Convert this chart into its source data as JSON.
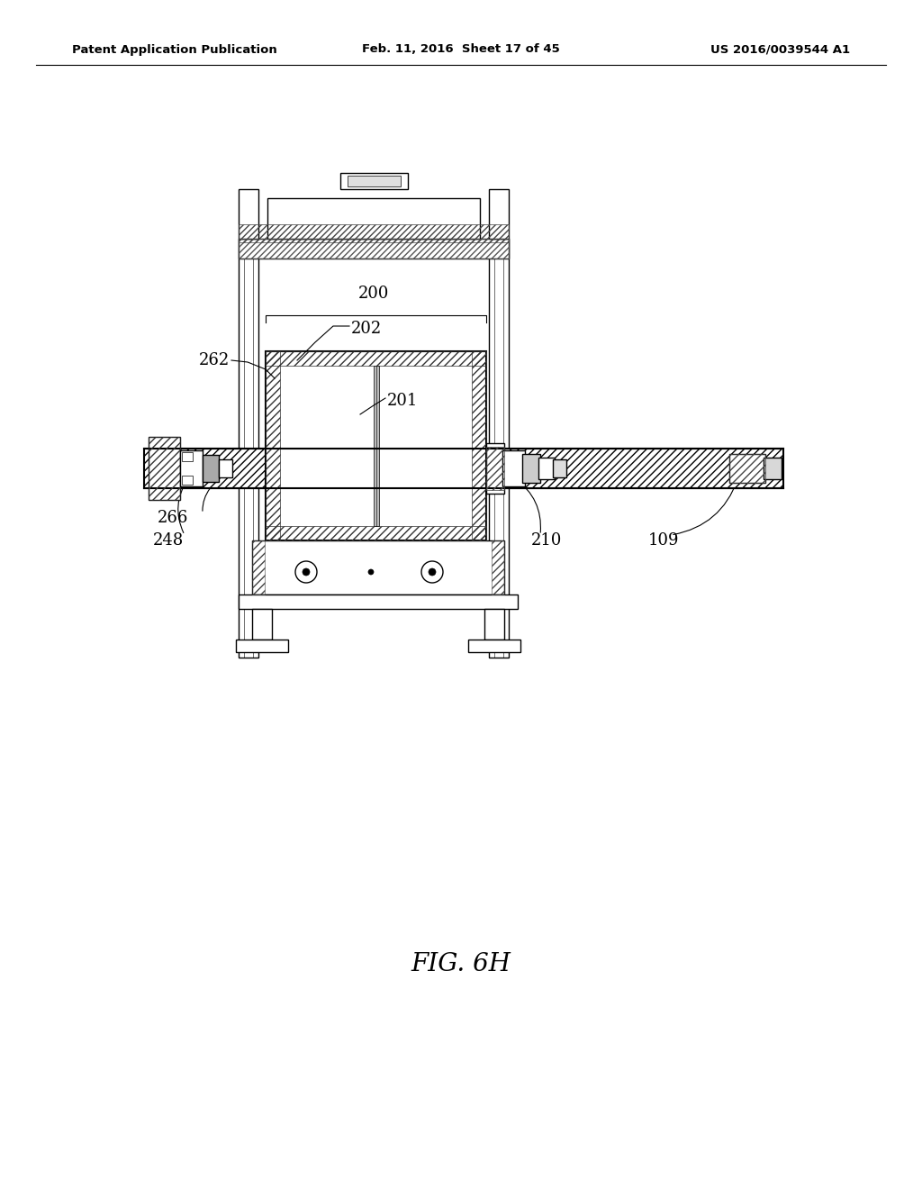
{
  "background_color": "#ffffff",
  "header_left": "Patent Application Publication",
  "header_center": "Feb. 11, 2016  Sheet 17 of 45",
  "header_right": "US 2016/0039544 A1",
  "figure_label": "FIG. 6H"
}
